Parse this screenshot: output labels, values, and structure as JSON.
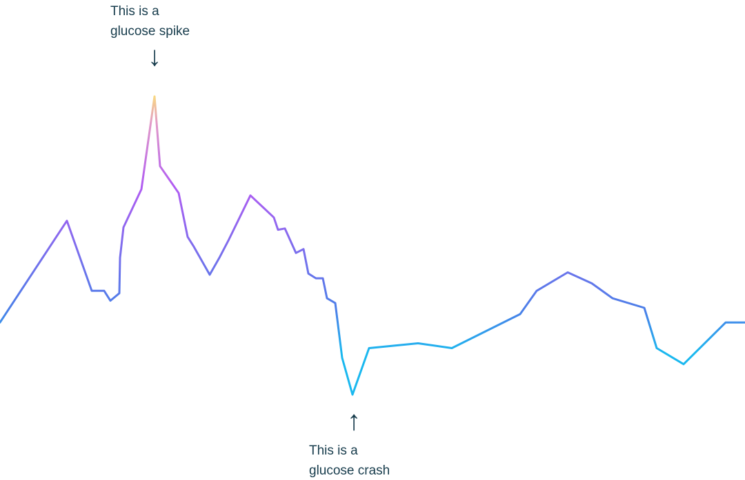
{
  "chart_data": {
    "type": "line",
    "title": "",
    "xlabel": "",
    "ylabel": "",
    "grid": false,
    "legend": "none",
    "xlim": [
      0,
      1080
    ],
    "ylim": [
      0,
      100
    ],
    "series": [
      {
        "x": [
          0,
          97,
          133,
          151,
          160,
          173,
          174,
          179,
          205,
          224,
          232,
          259,
          272,
          281,
          304,
          318,
          332,
          363,
          397,
          403,
          413,
          429,
          440,
          447,
          458,
          468,
          474,
          486,
          496,
          511,
          535,
          606,
          655,
          754,
          778,
          823,
          858,
          888,
          934,
          952,
          991,
          1052,
          1080
        ],
        "values": [
          24.2,
          58.3,
          34.8,
          34.8,
          31.5,
          34.0,
          45.9,
          56.1,
          68.9,
          100.0,
          76.6,
          67.6,
          52.9,
          49.6,
          40.2,
          45.9,
          52.1,
          66.8,
          59.4,
          55.3,
          55.7,
          47.5,
          48.8,
          40.6,
          39.0,
          39.0,
          32.3,
          30.7,
          12.3,
          0.0,
          15.6,
          17.2,
          15.6,
          27.0,
          34.8,
          41.0,
          37.3,
          32.3,
          29.1,
          15.6,
          10.2,
          24.2,
          24.2
        ]
      }
    ],
    "gradient": {
      "low": "#1ab8ef",
      "mid": "#4a7fe8",
      "high": "#b15cf2",
      "peak_mid": "#e29ac8",
      "peak": "#f8d882"
    }
  },
  "annotations": {
    "spike": {
      "line1": "This is a",
      "line2": "glucose spike",
      "arrow": "↓"
    },
    "crash": {
      "arrow": "↑",
      "line1": "This is a",
      "line2": "glucose crash"
    },
    "text_color": "#173c4c"
  }
}
